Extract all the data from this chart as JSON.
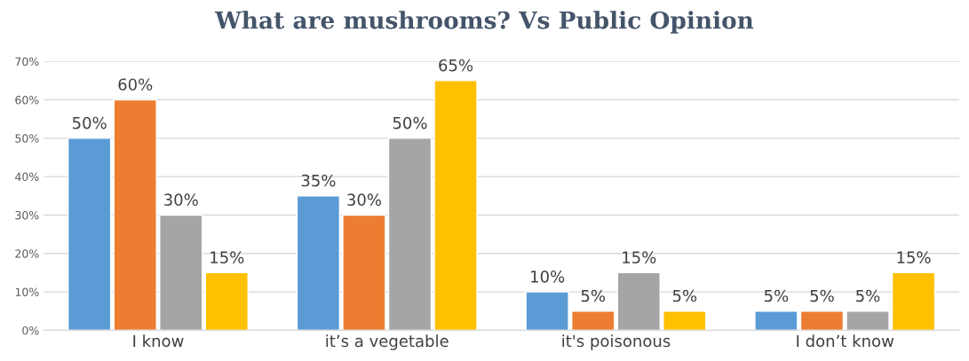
{
  "chart_data": {
    "type": "bar",
    "title": "What are mushrooms? Vs Public Opinion",
    "categories": [
      "I know",
      "it’s a vegetable",
      "it's poisonous",
      "I don’t know"
    ],
    "series": [
      {
        "color": "#5b9bd5",
        "values": [
          50,
          35,
          10,
          5
        ],
        "value_labels": [
          "50%",
          "35%",
          "10%",
          "5%"
        ]
      },
      {
        "color": "#ed7d31",
        "values": [
          60,
          30,
          5,
          5
        ],
        "value_labels": [
          "60%",
          "30%",
          "5%",
          "5%"
        ]
      },
      {
        "color": "#a5a5a5",
        "values": [
          30,
          50,
          15,
          5
        ],
        "value_labels": [
          "30%",
          "50%",
          "15%",
          "5%"
        ]
      },
      {
        "color": "#ffc000",
        "values": [
          15,
          65,
          5,
          15
        ],
        "value_labels": [
          "15%",
          "65%",
          "5%",
          "15%"
        ]
      }
    ],
    "ylim": [
      0,
      70
    ],
    "yticks": [
      {
        "value": 0,
        "label": "0%"
      },
      {
        "value": 10,
        "label": "10%"
      },
      {
        "value": 20,
        "label": "20%"
      },
      {
        "value": 30,
        "label": "30%"
      },
      {
        "value": 40,
        "label": "40%"
      },
      {
        "value": 50,
        "label": "50%"
      },
      {
        "value": 60,
        "label": "60%"
      },
      {
        "value": 70,
        "label": "70%"
      }
    ],
    "grid": "y",
    "legend": false
  }
}
